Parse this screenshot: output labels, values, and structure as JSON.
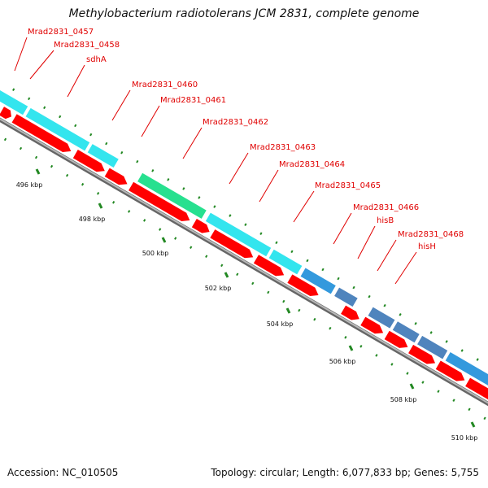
{
  "title": "Methylobacterium radiotolerans JCM 2831, complete genome",
  "footer": {
    "accession": "Accession: NC_010505",
    "summary": "Topology: circular; Length: 6,077,833 bp; Genes: 5,755"
  },
  "colors": {
    "cds": "#ff0000",
    "gene_cyan": "#33e5ee",
    "gene_green": "#27e08f",
    "gene_blue": "#3399dd",
    "gene_steel": "#4f84bd",
    "label": "#e00000",
    "tick": "#228822",
    "backbone": "#888888"
  },
  "gene_labels": [
    {
      "text": "Mrad2831_0457"
    },
    {
      "text": "Mrad2831_0458"
    },
    {
      "text": "sdhA"
    },
    {
      "text": "Mrad2831_0460"
    },
    {
      "text": "Mrad2831_0461"
    },
    {
      "text": "Mrad2831_0462"
    },
    {
      "text": "Mrad2831_0463"
    },
    {
      "text": "Mrad2831_0464"
    },
    {
      "text": "Mrad2831_0465"
    },
    {
      "text": "Mrad2831_0466"
    },
    {
      "text": "hisB"
    },
    {
      "text": "Mrad2831_0468"
    },
    {
      "text": "hisH"
    }
  ],
  "kbp_labels": [
    "496 kbp",
    "498 kbp",
    "500 kbp",
    "502 kbp",
    "504 kbp",
    "506 kbp",
    "508 kbp",
    "510 kbp"
  ]
}
